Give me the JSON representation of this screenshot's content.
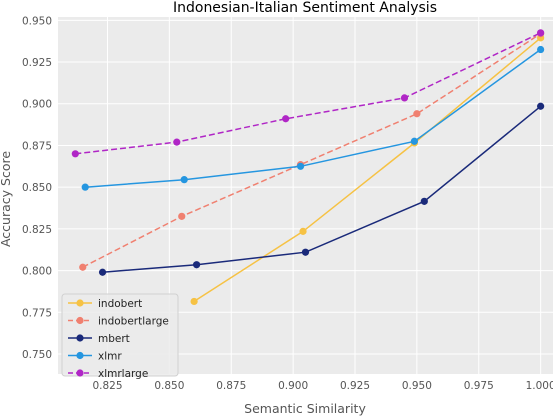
{
  "chart_data": {
    "type": "line",
    "title": "Indonesian-Italian Sentiment Analysis",
    "xlabel": "Semantic Similarity",
    "ylabel": "Accuracy Score",
    "xlim": [
      0.805,
      1.005
    ],
    "ylim": [
      0.738,
      0.952
    ],
    "xticks": [
      "0.825",
      "0.850",
      "0.875",
      "0.900",
      "0.925",
      "0.950",
      "0.975",
      "1.000"
    ],
    "yticks": [
      "0.750",
      "0.775",
      "0.800",
      "0.825",
      "0.850",
      "0.875",
      "0.900",
      "0.925",
      "0.950"
    ],
    "grid": true,
    "legend_position": "lower-left",
    "series": [
      {
        "name": "indobert",
        "color": "#f6c244",
        "dash": "solid",
        "x": [
          0.86,
          0.904,
          0.949,
          1.0
        ],
        "y": [
          0.7815,
          0.8235,
          0.8765,
          0.9395
        ]
      },
      {
        "name": "indobertlarge",
        "color": "#f08070",
        "dash": "dashed",
        "x": [
          0.815,
          0.855,
          0.903,
          0.95,
          1.0
        ],
        "y": [
          0.802,
          0.8325,
          0.8635,
          0.894,
          0.942
        ]
      },
      {
        "name": "mbert",
        "color": "#1a2a7a",
        "dash": "solid",
        "x": [
          0.823,
          0.861,
          0.905,
          0.953,
          1.0
        ],
        "y": [
          0.799,
          0.8035,
          0.811,
          0.8415,
          0.8985
        ]
      },
      {
        "name": "xlmr",
        "color": "#2596e0",
        "dash": "solid",
        "x": [
          0.816,
          0.856,
          0.903,
          0.949,
          1.0
        ],
        "y": [
          0.85,
          0.8545,
          0.8625,
          0.8775,
          0.9325
        ]
      },
      {
        "name": "xlmrlarge",
        "color": "#b026c6",
        "dash": "dashed",
        "x": [
          0.812,
          0.853,
          0.897,
          0.945,
          1.0
        ],
        "y": [
          0.87,
          0.877,
          0.891,
          0.9035,
          0.9425
        ]
      }
    ]
  }
}
